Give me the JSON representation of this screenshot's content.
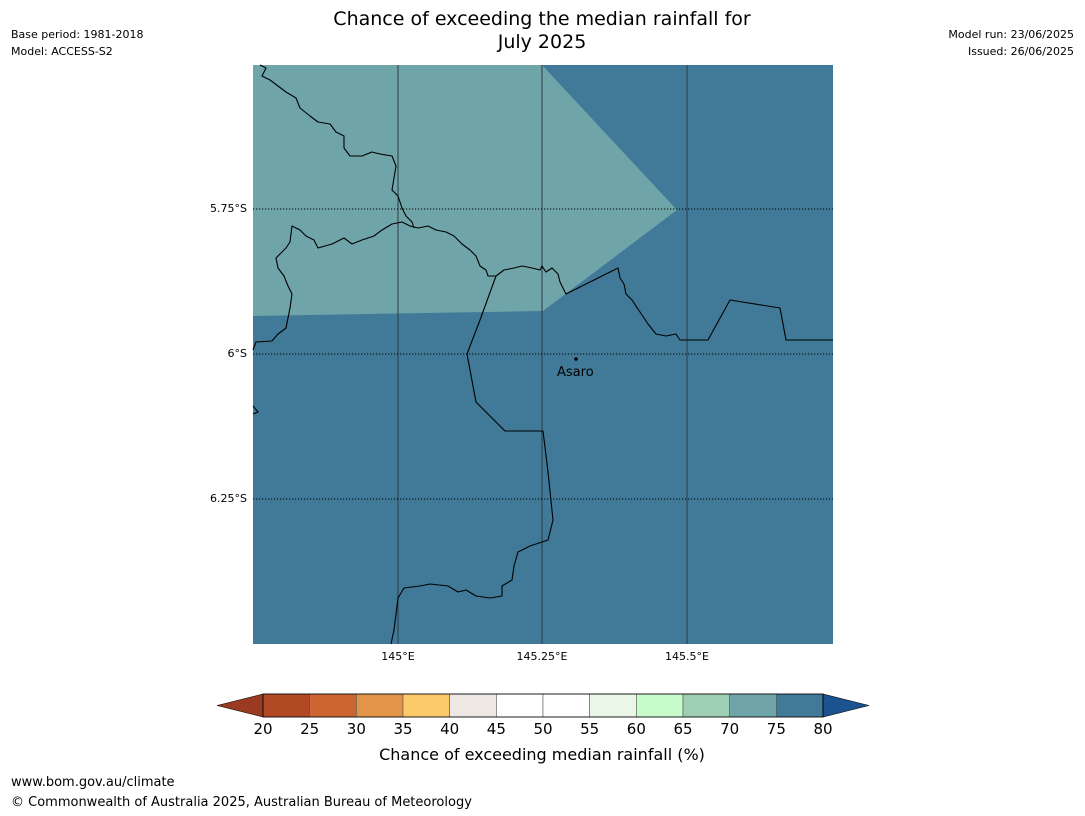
{
  "title": {
    "line1": "Chance of exceeding the median rainfall for",
    "line2": "July 2025"
  },
  "meta_left": {
    "base_period": "Base period: 1981-2018",
    "model": "Model: ACCESS-S2"
  },
  "meta_right": {
    "model_run": "Model run: 23/06/2025",
    "issued": "Issued: 26/06/2025"
  },
  "map": {
    "lat_labels": [
      "5.75°S",
      "6°S",
      "6.25°S"
    ],
    "lon_labels": [
      "145°E",
      "145.25°E",
      "145.5°E"
    ],
    "place": {
      "name": "Asaro"
    },
    "region_colors": {
      "upper_band": "#6fa4a8",
      "lower_band": "#417a98"
    }
  },
  "colorbar": {
    "ticks": [
      "20",
      "25",
      "30",
      "35",
      "40",
      "45",
      "50",
      "55",
      "60",
      "65",
      "70",
      "75",
      "80"
    ],
    "colors": [
      "#b14a24",
      "#cd6533",
      "#e29548",
      "#fdca6b",
      "#ede8e3",
      "#ffffff",
      "#ffffff",
      "#e9f6e8",
      "#c8fbcc",
      "#9ecfb5",
      "#6fa4a8",
      "#417a98"
    ],
    "under_color": "#9a3a22",
    "over_color": "#1a5390",
    "label": "Chance of exceeding median rainfall (%)"
  },
  "footer": {
    "url": "www.bom.gov.au/climate",
    "copyright": "© Commonwealth of Australia 2025, Australian Bureau of Meteorology"
  }
}
